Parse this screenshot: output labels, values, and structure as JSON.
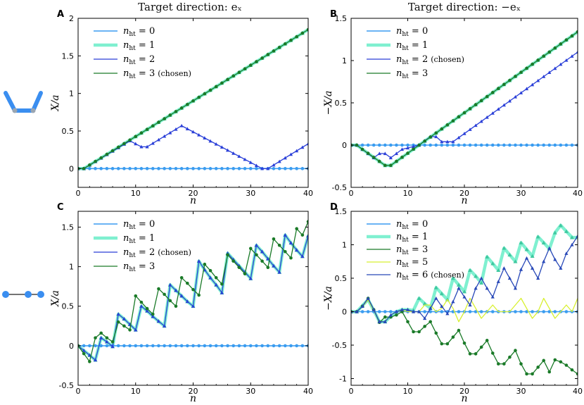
{
  "column_titles": [
    "Target direction: eₓ",
    "Target direction: −eₓ"
  ],
  "colors": {
    "nht0": "#3a9cf0",
    "nht1": "#7ff0d0",
    "nht2": "#2a3fd8",
    "nht3": "#1a7a28",
    "nht5": "#d8f030",
    "nht6": "#2848b8",
    "icon": "#3a8ef0"
  },
  "icons": [
    "bent-trimer-icon",
    "linear-trimer-icon"
  ],
  "chart_data": [
    {
      "panel": "A",
      "type": "line",
      "xlabel": "n",
      "ylabel": "X/a",
      "xlim": [
        0,
        40
      ],
      "ylim": [
        -0.25,
        2
      ],
      "xticks": [
        0,
        10,
        20,
        30,
        40
      ],
      "yticks": [
        0,
        0.5,
        1,
        1.5,
        2
      ],
      "ytick_labels": [
        "0",
        "0.5",
        "1",
        "1.5",
        "2"
      ],
      "legend": [
        "n_ht = 0",
        "n_ht = 1",
        "n_ht = 2",
        "n_ht = 3 (chosen)"
      ],
      "series": [
        {
          "key": "nht0",
          "name": "n_ht = 0",
          "x": [
            0,
            40
          ],
          "y": [
            0,
            0
          ]
        },
        {
          "key": "nht1",
          "name": "n_ht = 1",
          "x": [
            0,
            1,
            40
          ],
          "y": [
            0,
            0,
            1.85
          ]
        },
        {
          "key": "nht2",
          "name": "n_ht = 2",
          "x": [
            0,
            1,
            9,
            11,
            12,
            18,
            32,
            33,
            40
          ],
          "y": [
            0,
            0,
            0.37,
            0.29,
            0.29,
            0.57,
            0,
            0,
            0.33
          ]
        },
        {
          "key": "nht3",
          "name": "n_ht = 3",
          "x": [
            0,
            1,
            40
          ],
          "y": [
            0,
            0,
            1.85
          ]
        }
      ]
    },
    {
      "panel": "B",
      "type": "line",
      "xlabel": "n",
      "ylabel": "−X/a",
      "xlim": [
        0,
        40
      ],
      "ylim": [
        -0.5,
        1.5
      ],
      "xticks": [
        0,
        10,
        20,
        30,
        40
      ],
      "yticks": [
        -0.5,
        0,
        0.5,
        1,
        1.5
      ],
      "ytick_labels": [
        "-0.5",
        "0",
        "0.5",
        "1",
        "1.5"
      ],
      "legend": [
        "n_ht = 0",
        "n_ht = 1",
        "n_ht = 2 (chosen)",
        "n_ht = 3"
      ],
      "series": [
        {
          "key": "nht0",
          "name": "n_ht = 0",
          "x": [
            0,
            40
          ],
          "y": [
            0,
            0
          ]
        },
        {
          "key": "nht1",
          "name": "n_ht = 1",
          "x": [
            0,
            1,
            2,
            6,
            7,
            12,
            40
          ],
          "y": [
            0,
            0,
            -0.05,
            -0.24,
            -0.24,
            0,
            1.34
          ]
        },
        {
          "key": "nht2",
          "name": "n_ht = 2",
          "x": [
            0,
            1,
            3,
            4,
            5,
            6,
            7,
            8,
            9,
            12,
            14,
            15,
            16,
            18,
            40
          ],
          "y": [
            0,
            0,
            -0.1,
            -0.15,
            -0.1,
            -0.1,
            -0.15,
            -0.1,
            -0.05,
            0,
            0.1,
            0.1,
            0.04,
            0.04,
            1.1
          ]
        },
        {
          "key": "nht3",
          "name": "n_ht = 3",
          "x": [
            0,
            1,
            2,
            6,
            7,
            12,
            40
          ],
          "y": [
            0,
            0,
            -0.05,
            -0.24,
            -0.24,
            0,
            1.34
          ]
        }
      ]
    },
    {
      "panel": "C",
      "type": "line",
      "xlabel": "n",
      "ylabel": "X/a",
      "xlim": [
        0,
        40
      ],
      "ylim": [
        -0.5,
        1.7
      ],
      "xticks": [
        0,
        10,
        20,
        30,
        40
      ],
      "yticks": [
        -0.5,
        0,
        0.5,
        1,
        1.5
      ],
      "ytick_labels": [
        "-0.5",
        "0",
        "0.5",
        "1",
        "1.5"
      ],
      "legend": [
        "n_ht = 0",
        "n_ht = 1",
        "n_ht = 2 (chosen)",
        "n_ht = 3"
      ],
      "series": [
        {
          "key": "nht0",
          "name": "n_ht = 0",
          "x": [
            0,
            40
          ],
          "y": [
            0,
            0
          ]
        },
        {
          "key": "nht1",
          "name": "n_ht = 1",
          "x": [
            0,
            1,
            2,
            3,
            4,
            5,
            6,
            7,
            8,
            9,
            10,
            11,
            12,
            13,
            14,
            15,
            16,
            17,
            18,
            19,
            20,
            21,
            22,
            23,
            24,
            25,
            26,
            27,
            28,
            29,
            30,
            31,
            32,
            33,
            34,
            35,
            36,
            37,
            38,
            39,
            40
          ],
          "y": [
            0,
            -0.06,
            -0.12,
            -0.18,
            0.1,
            0.05,
            -0.01,
            0.4,
            0.34,
            0.27,
            0.2,
            0.5,
            0.44,
            0.37,
            0.31,
            0.25,
            0.77,
            0.7,
            0.63,
            0.56,
            0.5,
            1.07,
            0.96,
            0.86,
            0.77,
            0.67,
            1.17,
            1.09,
            1.01,
            0.93,
            0.85,
            1.27,
            1.19,
            1.1,
            1.01,
            0.93,
            1.4,
            1.3,
            1.21,
            1.13,
            1.39
          ]
        },
        {
          "key": "nht2",
          "name": "n_ht = 2",
          "x": [
            0,
            1,
            2,
            3,
            4,
            5,
            6,
            7,
            8,
            9,
            10,
            11,
            12,
            13,
            14,
            15,
            16,
            17,
            18,
            19,
            20,
            21,
            22,
            23,
            24,
            25,
            26,
            27,
            28,
            29,
            30,
            31,
            32,
            33,
            34,
            35,
            36,
            37,
            38,
            39,
            40
          ],
          "y": [
            0,
            -0.06,
            -0.12,
            -0.18,
            0.1,
            0.05,
            -0.01,
            0.4,
            0.34,
            0.27,
            0.2,
            0.5,
            0.44,
            0.37,
            0.31,
            0.25,
            0.77,
            0.7,
            0.63,
            0.56,
            0.5,
            1.07,
            0.96,
            0.86,
            0.77,
            0.67,
            1.17,
            1.09,
            1.01,
            0.93,
            0.85,
            1.27,
            1.19,
            1.1,
            1.01,
            0.93,
            1.4,
            1.3,
            1.21,
            1.13,
            1.39
          ]
        },
        {
          "key": "nht3",
          "name": "n_ht = 3",
          "x": [
            0,
            1,
            2,
            3,
            4,
            5,
            6,
            7,
            8,
            9,
            10,
            11,
            12,
            13,
            14,
            15,
            16,
            17,
            18,
            19,
            20,
            21,
            22,
            23,
            24,
            25,
            26,
            27,
            28,
            29,
            30,
            31,
            32,
            33,
            34,
            35,
            36,
            37,
            38,
            39,
            40
          ],
          "y": [
            0,
            -0.1,
            -0.2,
            0.1,
            0.16,
            0.1,
            0.05,
            0.3,
            0.25,
            0.2,
            0.63,
            0.55,
            0.47,
            0.4,
            0.72,
            0.65,
            0.57,
            0.5,
            0.86,
            0.79,
            0.71,
            0.64,
            1.03,
            0.95,
            0.86,
            0.78,
            1.15,
            1.07,
            0.99,
            0.91,
            1.23,
            1.15,
            1.07,
            0.99,
            1.35,
            1.27,
            1.19,
            1.11,
            1.48,
            1.4,
            1.57
          ]
        }
      ]
    },
    {
      "panel": "D",
      "type": "line",
      "xlabel": "n",
      "ylabel": "−X/a",
      "xlim": [
        0,
        40
      ],
      "ylim": [
        -1.1,
        1.5
      ],
      "xticks": [
        0,
        10,
        20,
        30,
        40
      ],
      "yticks": [
        -1,
        -0.5,
        0,
        0.5,
        1,
        1.5
      ],
      "ytick_labels": [
        "-1",
        "-0.5",
        "0",
        "0.5",
        "1",
        "1.5"
      ],
      "legend": [
        "n_ht = 0",
        "n_ht = 1",
        "n_ht = 3",
        "n_ht = 5",
        "n_ht = 6 (chosen)"
      ],
      "series": [
        {
          "key": "nht0",
          "name": "n_ht = 0",
          "x": [
            0,
            40
          ],
          "y": [
            0,
            0
          ]
        },
        {
          "key": "nht1",
          "name": "n_ht = 1",
          "x": [
            0,
            1,
            2,
            3,
            4,
            5,
            6,
            7,
            8,
            9,
            10,
            11,
            12,
            13,
            14,
            15,
            16,
            17,
            18,
            19,
            20,
            21,
            22,
            23,
            24,
            25,
            26,
            27,
            28,
            29,
            30,
            31,
            32,
            33,
            34,
            35,
            36,
            37,
            38,
            39,
            40
          ],
          "y": [
            0,
            0,
            0.09,
            0.18,
            0.02,
            -0.15,
            -0.15,
            -0.07,
            0,
            0.03,
            0.03,
            0.02,
            0.2,
            0.12,
            0.05,
            0.36,
            0.27,
            0.18,
            0.5,
            0.4,
            0.3,
            0.62,
            0.53,
            0.43,
            0.82,
            0.72,
            0.62,
            0.95,
            0.85,
            0.75,
            1.03,
            0.93,
            0.83,
            1.12,
            1.03,
            0.94,
            1.18,
            1.29,
            1.2,
            1.11,
            1.11
          ]
        },
        {
          "key": "nht3",
          "name": "n_ht = 3",
          "x": [
            0,
            1,
            2,
            3,
            4,
            5,
            6,
            7,
            8,
            9,
            10,
            11,
            12,
            13,
            14,
            15,
            16,
            17,
            18,
            19,
            20,
            21,
            22,
            23,
            24,
            25,
            26,
            27,
            28,
            29,
            30,
            31,
            32,
            33,
            34,
            35,
            36,
            37,
            38,
            39,
            40
          ],
          "y": [
            0,
            0,
            0.08,
            0.2,
            0.03,
            -0.16,
            -0.08,
            -0.08,
            -0.05,
            0,
            -0.15,
            -0.3,
            -0.3,
            -0.22,
            -0.15,
            -0.32,
            -0.48,
            -0.48,
            -0.38,
            -0.28,
            -0.47,
            -0.63,
            -0.63,
            -0.53,
            -0.43,
            -0.62,
            -0.78,
            -0.78,
            -0.68,
            -0.58,
            -0.78,
            -0.93,
            -0.93,
            -0.83,
            -0.73,
            -0.9,
            -0.72,
            -0.75,
            -0.8,
            -0.87,
            -0.93
          ]
        },
        {
          "key": "nht5",
          "name": "n_ht = 5",
          "x": [
            0,
            1,
            2,
            3,
            4,
            5,
            6,
            7,
            8,
            9,
            10,
            11,
            12,
            13,
            14,
            15,
            16,
            17,
            18,
            19,
            20,
            21,
            22,
            23,
            24,
            25,
            26,
            27,
            28,
            29,
            30,
            31,
            32,
            33,
            34,
            35,
            36,
            37,
            38,
            39,
            40
          ],
          "y": [
            0,
            0,
            0.08,
            0.18,
            0.02,
            -0.15,
            -0.15,
            -0.05,
            0,
            0.02,
            0,
            0,
            0,
            0.1,
            0.1,
            0,
            0.05,
            0.18,
            0.05,
            -0.15,
            0,
            0.2,
            0.05,
            -0.1,
            0,
            0.1,
            0,
            0,
            0,
            0.1,
            0.2,
            0.05,
            -0.1,
            0,
            0.2,
            0.05,
            -0.1,
            0,
            0.1,
            0,
            0.2
          ]
        },
        {
          "key": "nht6",
          "name": "n_ht = 6",
          "x": [
            0,
            1,
            2,
            3,
            4,
            5,
            6,
            7,
            8,
            9,
            10,
            11,
            12,
            13,
            14,
            15,
            16,
            17,
            18,
            19,
            20,
            21,
            22,
            23,
            24,
            25,
            26,
            27,
            28,
            29,
            30,
            31,
            32,
            33,
            34,
            35,
            36,
            37,
            38,
            39,
            40
          ],
          "y": [
            0,
            0,
            0.08,
            0.2,
            0.03,
            -0.15,
            -0.15,
            -0.05,
            0,
            0.03,
            0.03,
            0,
            0,
            -0.1,
            0.05,
            0.2,
            0.08,
            -0.03,
            0.15,
            0.35,
            0.22,
            0.1,
            0.35,
            0.5,
            0.35,
            0.22,
            0.45,
            0.65,
            0.5,
            0.35,
            0.63,
            0.8,
            0.65,
            0.5,
            0.75,
            0.95,
            0.78,
            0.65,
            0.87,
            1.0,
            1.13
          ]
        }
      ]
    }
  ]
}
